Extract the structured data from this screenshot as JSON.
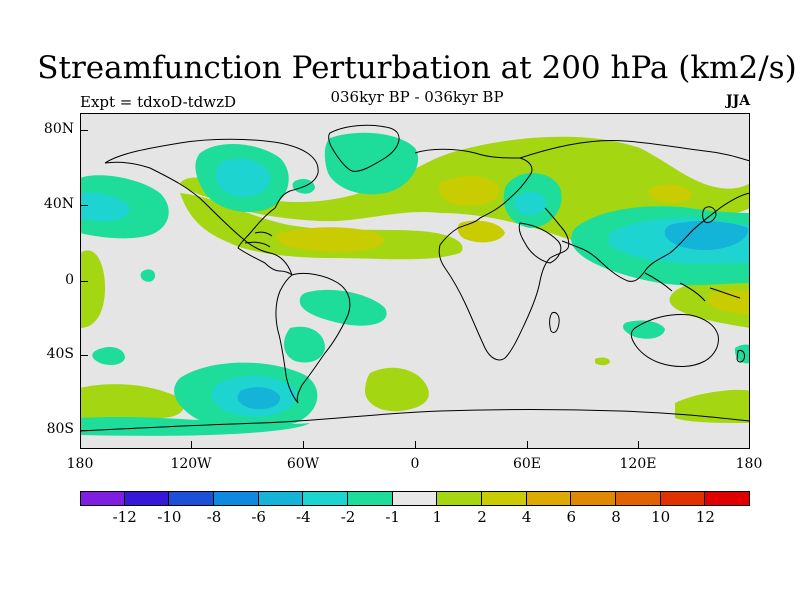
{
  "title": "Streamfunction Perturbation at 200 hPa (km2/s)",
  "experiment": "Expt = tdxoD-tdwzD",
  "period": "036kyr BP - 036kyr BP",
  "season": "JJA",
  "lat_labels": [
    "80N",
    "40N",
    "0",
    "40S",
    "80S"
  ],
  "lat_values": [
    80,
    40,
    0,
    -40,
    -80
  ],
  "lon_labels": [
    "180",
    "120W",
    "60W",
    "0",
    "60E",
    "120E",
    "180"
  ],
  "lon_values": [
    -180,
    -120,
    -60,
    0,
    60,
    120,
    180
  ],
  "colorbar": {
    "colors": [
      "#7f1ee0",
      "#3618d9",
      "#1e4fd9",
      "#0d89e0",
      "#14b4d9",
      "#1ed4d0",
      "#1edc9a",
      "#e8e8e8",
      "#a4d611",
      "#c8cc00",
      "#dcaa00",
      "#e08800",
      "#e06200",
      "#e03200",
      "#e00000"
    ],
    "labels": [
      "-12",
      "-10",
      "-8",
      "-6",
      "-4",
      "-2",
      "-1",
      "1",
      "2",
      "4",
      "6",
      "8",
      "10",
      "12"
    ]
  },
  "palette": {
    "n1": "#1edc9a",
    "n2": "#1ed4d0",
    "n3": "#14b4d9",
    "p1": "#a4d611",
    "p2": "#c8cc00"
  }
}
